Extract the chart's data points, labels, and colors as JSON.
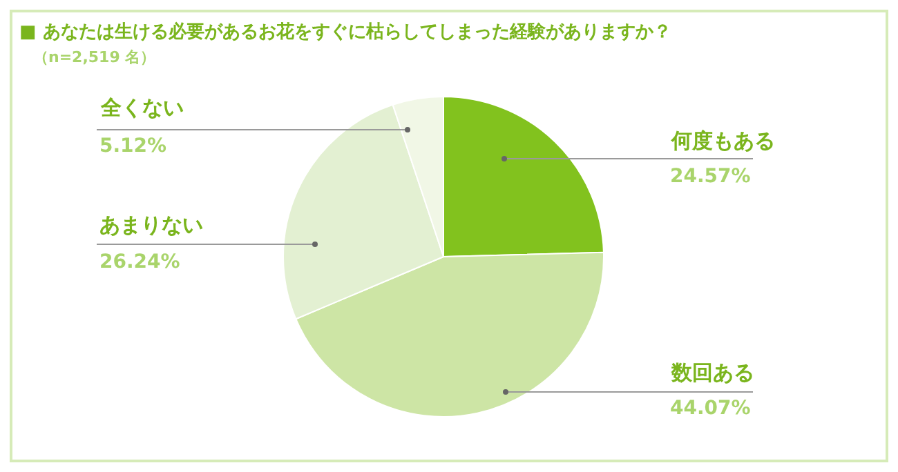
{
  "chart_data": {
    "type": "pie",
    "title": "■ あなたは生ける必要があるお花をすぐに枯らしてしまった経験がありますか？",
    "subtitle": "（n=2,519 名）",
    "categories": [
      "何度もある",
      "数回ある",
      "あまりない",
      "全くない"
    ],
    "values": [
      24.57,
      44.07,
      26.24,
      5.12
    ],
    "value_labels": [
      "24.57%",
      "44.07%",
      "26.24%",
      "5.12%"
    ],
    "colors": [
      "#82c21e",
      "#cde5a5",
      "#e3f0d2",
      "#f1f7e6"
    ],
    "legend": false
  }
}
